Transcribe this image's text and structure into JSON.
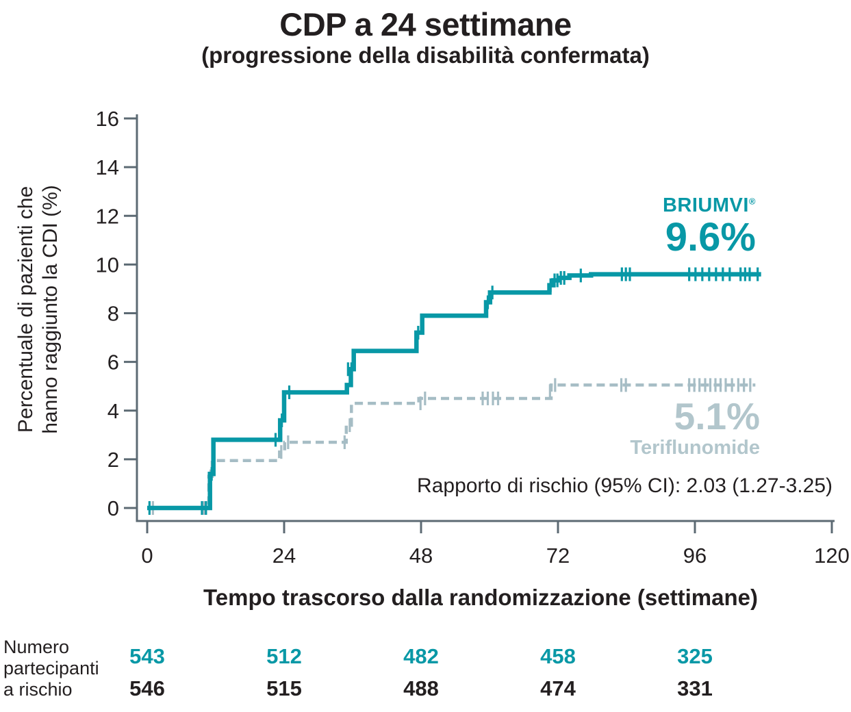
{
  "colors": {
    "teal": "#0898a6",
    "gray_line": "#a6bdc5",
    "gray_text": "#b2c6cc",
    "axis": "#5c6a73",
    "text": "#231f20"
  },
  "chart_data": {
    "type": "line",
    "subtype": "kaplan-meier-step",
    "title": "CDP a 24 settimane",
    "subtitle": "(progressione della disabilità confermata)",
    "xlabel": "Tempo trascorso dalla randomizzazione (settimane)",
    "ylabel": "Percentuale di pazienti che hanno raggiunto la CDI (%)",
    "ylabel_line1": "Percentuale di pazienti che",
    "ylabel_line2": "hanno raggiunto la CDI (%)",
    "xlim": [
      0,
      120
    ],
    "ylim": [
      0,
      16
    ],
    "x_ticks": [
      0,
      24,
      48,
      72,
      96,
      120
    ],
    "y_ticks": [
      0,
      2,
      4,
      6,
      8,
      10,
      12,
      14,
      16
    ],
    "grid": false,
    "legend_position": "inline-labels",
    "annotations": {
      "briumvi_brand": "BRIUMVI",
      "briumvi_reg": "®",
      "briumvi_value": "9.6%",
      "teriflunomide_value": "5.1%",
      "teriflunomide_name": "Teriflunomide",
      "hazard_ratio": "Rapporto di rischio (95% CI): 2.03 (1.27-3.25)"
    },
    "series": [
      {
        "name": "BRIUMVI",
        "final_value": 9.6,
        "color": "#0898a6",
        "style": "solid",
        "steps": [
          [
            0,
            0
          ],
          [
            11,
            0
          ],
          [
            11,
            1.4
          ],
          [
            11.6,
            1.4
          ],
          [
            11.6,
            2.8
          ],
          [
            23.3,
            2.8
          ],
          [
            23.3,
            3.6
          ],
          [
            24,
            3.6
          ],
          [
            24,
            4.75
          ],
          [
            35,
            4.75
          ],
          [
            35,
            5.05
          ],
          [
            35.7,
            5.05
          ],
          [
            35.7,
            5.7
          ],
          [
            36.2,
            5.7
          ],
          [
            36.2,
            6.45
          ],
          [
            47.2,
            6.45
          ],
          [
            47.2,
            7.2
          ],
          [
            48.2,
            7.2
          ],
          [
            48.2,
            7.9
          ],
          [
            59.4,
            7.9
          ],
          [
            59.4,
            8.45
          ],
          [
            60.1,
            8.45
          ],
          [
            60.1,
            8.85
          ],
          [
            70.5,
            8.85
          ],
          [
            70.5,
            9.15
          ],
          [
            71.2,
            9.15
          ],
          [
            71.2,
            9.35
          ],
          [
            72.2,
            9.35
          ],
          [
            72.2,
            9.45
          ],
          [
            74,
            9.45
          ],
          [
            74,
            9.55
          ],
          [
            77.8,
            9.55
          ],
          [
            77.8,
            9.6
          ],
          [
            107.6,
            9.6
          ]
        ],
        "censor_marks": [
          [
            0.4,
            0
          ],
          [
            9.6,
            0
          ],
          [
            10.3,
            0
          ],
          [
            11.3,
            1.4
          ],
          [
            22.5,
            2.8
          ],
          [
            23.6,
            3.6
          ],
          [
            24.9,
            4.75
          ],
          [
            35.2,
            5.7
          ],
          [
            35.8,
            5.7
          ],
          [
            47.5,
            7.2
          ],
          [
            59.7,
            8.45
          ],
          [
            60.5,
            8.85
          ],
          [
            70.7,
            9.15
          ],
          [
            71.4,
            9.35
          ],
          [
            71.9,
            9.35
          ],
          [
            72.5,
            9.45
          ],
          [
            73.1,
            9.45
          ],
          [
            76,
            9.55
          ],
          [
            83.2,
            9.6
          ],
          [
            83.9,
            9.6
          ],
          [
            84.6,
            9.6
          ],
          [
            95,
            9.6
          ],
          [
            96.1,
            9.6
          ],
          [
            97.3,
            9.6
          ],
          [
            98.5,
            9.6
          ],
          [
            99.7,
            9.6
          ],
          [
            100.9,
            9.6
          ],
          [
            102.1,
            9.6
          ],
          [
            104,
            9.6
          ],
          [
            104.8,
            9.6
          ],
          [
            105.6,
            9.6
          ],
          [
            107,
            9.6
          ]
        ]
      },
      {
        "name": "Teriflunomide",
        "final_value": 5.1,
        "color": "#a6bdc5",
        "style": "dashed",
        "steps": [
          [
            0,
            0
          ],
          [
            10.8,
            0
          ],
          [
            10.8,
            1.3
          ],
          [
            11.4,
            1.3
          ],
          [
            11.4,
            1.95
          ],
          [
            23.2,
            1.95
          ],
          [
            23.2,
            2.3
          ],
          [
            24.1,
            2.3
          ],
          [
            24.1,
            2.7
          ],
          [
            34.9,
            2.7
          ],
          [
            34.9,
            3.4
          ],
          [
            35.8,
            3.4
          ],
          [
            35.8,
            4.3
          ],
          [
            47.6,
            4.3
          ],
          [
            47.6,
            4.5
          ],
          [
            70.8,
            4.5
          ],
          [
            70.8,
            5.05
          ],
          [
            106.6,
            5.05
          ]
        ],
        "censor_marks": [
          [
            1,
            0
          ],
          [
            10,
            0
          ],
          [
            11.1,
            1.3
          ],
          [
            23.5,
            2.3
          ],
          [
            24.7,
            2.7
          ],
          [
            34.6,
            2.7
          ],
          [
            35.5,
            3.4
          ],
          [
            47.9,
            4.3
          ],
          [
            48.7,
            4.5
          ],
          [
            58.8,
            4.5
          ],
          [
            59.7,
            4.5
          ],
          [
            60.6,
            4.5
          ],
          [
            61.5,
            4.5
          ],
          [
            70.6,
            4.8
          ],
          [
            71.5,
            5.05
          ],
          [
            83.1,
            5.05
          ],
          [
            83.9,
            5.05
          ],
          [
            95,
            5.05
          ],
          [
            95.9,
            5.05
          ],
          [
            96.8,
            5.05
          ],
          [
            97.8,
            5.05
          ],
          [
            98.7,
            5.05
          ],
          [
            99.6,
            5.05
          ],
          [
            100.5,
            5.05
          ],
          [
            101.4,
            5.05
          ],
          [
            102.5,
            5.05
          ],
          [
            103.6,
            5.05
          ],
          [
            104.6,
            5.05
          ],
          [
            105.7,
            5.05
          ]
        ]
      }
    ],
    "risk_table": {
      "label_lines": [
        "Numero",
        "partecipanti",
        "a rischio"
      ],
      "columns_weeks": [
        0,
        24,
        48,
        72,
        96
      ],
      "briumvi": [
        "543",
        "512",
        "482",
        "458",
        "325"
      ],
      "teriflunomide": [
        "546",
        "515",
        "488",
        "474",
        "331"
      ]
    }
  }
}
